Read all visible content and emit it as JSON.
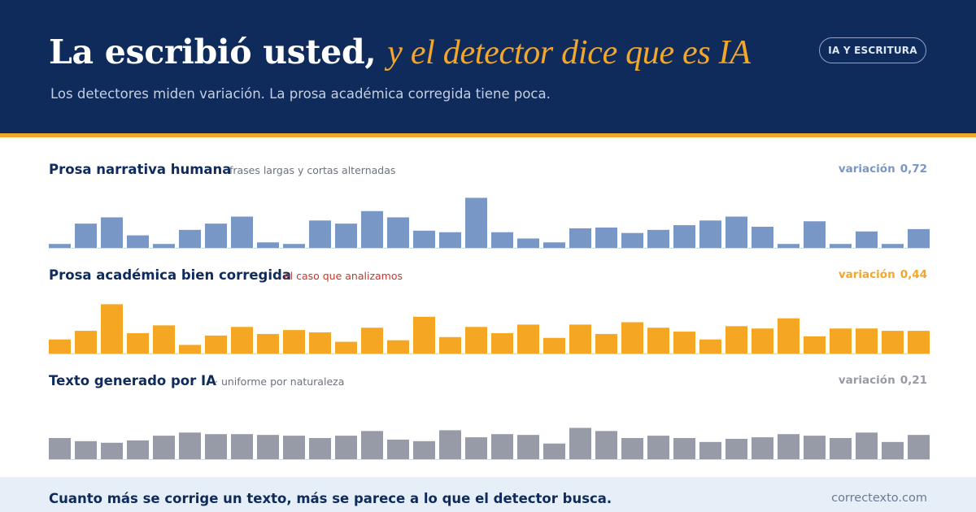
{
  "header": {
    "title_main": "La escribió usted,",
    "title_accent": "y el detector dice que es IA",
    "subtitle": "Los detectores miden variación. La prosa académica corregida tiene poca.",
    "badge": "IA Y ESCRITURA"
  },
  "colors": {
    "navy": "#0f2b5c",
    "gold": "#f2a72a",
    "blue_bars": "#7896c6",
    "gold_bars": "#f5a623",
    "gray_bars": "#979aa7"
  },
  "chart_data": [
    {
      "type": "bar",
      "title": "Prosa narrativa humana",
      "note": "· frases largas y cortas alternadas",
      "metric_label": "variación",
      "metric_value": "0,72",
      "color": "#7896c6",
      "ylim": [
        0,
        80
      ],
      "values": [
        5,
        31,
        39,
        16,
        5,
        23,
        31,
        40,
        7,
        5,
        35,
        31,
        47,
        39,
        22,
        20,
        64,
        20,
        12,
        7,
        25,
        26,
        19,
        23,
        29,
        35,
        40,
        27,
        5,
        34,
        5,
        21,
        5,
        24
      ]
    },
    {
      "type": "bar",
      "title": "Prosa académica bien corregida",
      "note": "· el caso que analizamos",
      "metric_label": "variación",
      "metric_value": "0,44",
      "color": "#f5a623",
      "ylim": [
        0,
        80
      ],
      "values": [
        18,
        29,
        63,
        26,
        36,
        11,
        23,
        34,
        25,
        30,
        27,
        15,
        33,
        17,
        47,
        21,
        34,
        26,
        37,
        20,
        37,
        25,
        40,
        33,
        28,
        18,
        35,
        32,
        45,
        22,
        32,
        32,
        29,
        29
      ]
    },
    {
      "type": "bar",
      "title": "Texto generado por IA",
      "note": "· uniforme por naturaleza",
      "metric_label": "variación",
      "metric_value": "0,21",
      "color": "#979aa7",
      "ylim": [
        0,
        80
      ],
      "values": [
        27,
        23,
        21,
        24,
        30,
        34,
        32,
        32,
        31,
        30,
        27,
        30,
        36,
        25,
        23,
        37,
        28,
        32,
        31,
        20,
        40,
        36,
        27,
        30,
        27,
        22,
        26,
        28,
        32,
        30,
        27,
        34,
        22,
        31
      ]
    }
  ],
  "footer": {
    "text": "Cuanto más se corrige un texto, más se parece a lo que el detector busca.",
    "site": "correctexto.com"
  }
}
